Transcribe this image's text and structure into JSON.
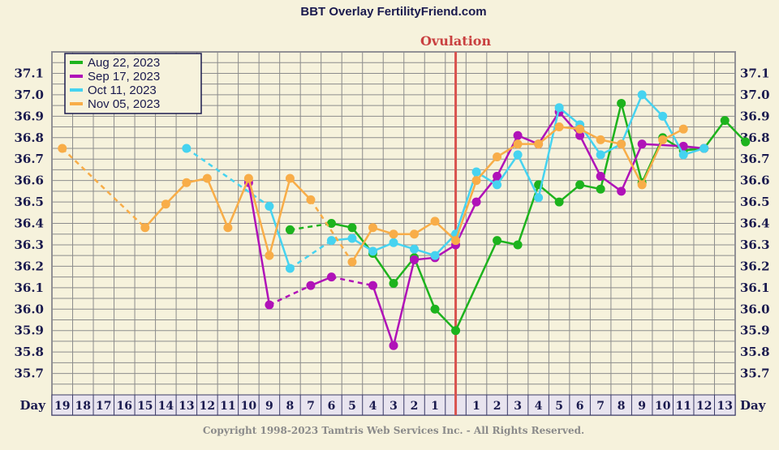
{
  "chart_data": {
    "type": "line",
    "title": "BBT Overlay FertilityFriend.com",
    "annotation": "Ovulation",
    "copyright": "Copyright 1998-2023 Tamtris Web Services Inc. - All Rights Reserved.",
    "x_axis_label": "Day",
    "x_ticks": [
      "19",
      "18",
      "17",
      "16",
      "15",
      "14",
      "13",
      "12",
      "11",
      "10",
      "9",
      "8",
      "7",
      "6",
      "5",
      "4",
      "3",
      "2",
      "1",
      "",
      "1",
      "2",
      "3",
      "4",
      "5",
      "6",
      "7",
      "8",
      "9",
      "10",
      "11",
      "12",
      "13"
    ],
    "ylim": [
      35.6,
      37.2
    ],
    "y_ticks": [
      35.7,
      35.8,
      35.9,
      36.0,
      36.1,
      36.2,
      36.3,
      36.4,
      36.5,
      36.6,
      36.7,
      36.8,
      36.9,
      37.0,
      37.1
    ],
    "y_tick_labels": [
      "35.7",
      "35.8",
      "35.9",
      "36.0",
      "36.1",
      "36.2",
      "36.3",
      "36.4",
      "36.5",
      "36.6",
      "36.7",
      "36.8",
      "36.9",
      "37.0",
      "37.1"
    ],
    "grid": true,
    "legend_position": "top-left",
    "ovulation_marker_index": 19.5,
    "colors": {
      "background": "#f6f2dc",
      "grid": "#8c8c8c",
      "ovulation_line": "#d9534f",
      "text": "#1a1a4e"
    },
    "series": [
      {
        "name": "Aug 22, 2023",
        "color": "#1db31d",
        "points": [
          [
            11,
            36.37
          ],
          [
            13,
            36.4
          ],
          [
            14,
            36.38
          ],
          [
            15,
            36.26
          ],
          [
            16,
            36.12
          ],
          [
            17,
            36.24
          ],
          [
            18,
            36.0
          ],
          [
            19,
            35.9
          ],
          [
            21,
            36.32
          ],
          [
            22,
            36.3
          ],
          [
            23,
            36.58
          ],
          [
            24,
            36.5
          ],
          [
            25,
            36.58
          ],
          [
            26,
            36.56
          ],
          [
            27,
            36.96
          ],
          [
            28,
            36.59
          ],
          [
            29,
            36.8
          ],
          [
            30,
            36.74
          ],
          [
            31,
            36.75
          ],
          [
            32,
            36.88
          ],
          [
            33,
            36.78
          ]
        ],
        "dashed_segments": [
          [
            11,
            13
          ]
        ]
      },
      {
        "name": "Sep 17, 2023",
        "color": "#b012b8",
        "points": [
          [
            9,
            36.59
          ],
          [
            10,
            36.02
          ],
          [
            12,
            36.11
          ],
          [
            13,
            36.15
          ],
          [
            15,
            36.11
          ],
          [
            16,
            35.83
          ],
          [
            17,
            36.23
          ],
          [
            18,
            36.24
          ],
          [
            19,
            36.3
          ],
          [
            20,
            36.5
          ],
          [
            21,
            36.62
          ],
          [
            22,
            36.81
          ],
          [
            23,
            36.77
          ],
          [
            24,
            36.92
          ],
          [
            25,
            36.81
          ],
          [
            26,
            36.62
          ],
          [
            27,
            36.55
          ],
          [
            28,
            36.77
          ],
          [
            30,
            36.76
          ],
          [
            31,
            36.75
          ]
        ],
        "dashed_segments": [
          [
            10,
            12
          ],
          [
            13,
            15
          ]
        ]
      },
      {
        "name": "Oct 11, 2023",
        "color": "#46d3f0",
        "points": [
          [
            6,
            36.75
          ],
          [
            10,
            36.48
          ],
          [
            11,
            36.19
          ],
          [
            13,
            36.32
          ],
          [
            14,
            36.33
          ],
          [
            15,
            36.27
          ],
          [
            16,
            36.31
          ],
          [
            17,
            36.28
          ],
          [
            18,
            36.25
          ],
          [
            19,
            36.35
          ],
          [
            20,
            36.64
          ],
          [
            21,
            36.58
          ],
          [
            22,
            36.72
          ],
          [
            23,
            36.52
          ],
          [
            24,
            36.94
          ],
          [
            25,
            36.86
          ],
          [
            26,
            36.72
          ],
          [
            27,
            36.77
          ],
          [
            28,
            37.0
          ],
          [
            29,
            36.9
          ],
          [
            30,
            36.72
          ],
          [
            31,
            36.75
          ]
        ],
        "dashed_segments": [
          [
            6,
            10
          ],
          [
            11,
            13
          ]
        ]
      },
      {
        "name": "Nov 05, 2023",
        "color": "#f8ad48",
        "points": [
          [
            0,
            36.75
          ],
          [
            4,
            36.38
          ],
          [
            5,
            36.49
          ],
          [
            6,
            36.59
          ],
          [
            7,
            36.61
          ],
          [
            8,
            36.38
          ],
          [
            9,
            36.61
          ],
          [
            10,
            36.25
          ],
          [
            11,
            36.61
          ],
          [
            12,
            36.51
          ],
          [
            14,
            36.22
          ],
          [
            15,
            36.38
          ],
          [
            16,
            36.35
          ],
          [
            17,
            36.35
          ],
          [
            18,
            36.41
          ],
          [
            19,
            36.32
          ],
          [
            20,
            36.6
          ],
          [
            21,
            36.71
          ],
          [
            22,
            36.77
          ],
          [
            23,
            36.77
          ],
          [
            24,
            36.85
          ],
          [
            25,
            36.84
          ],
          [
            26,
            36.79
          ],
          [
            27,
            36.77
          ],
          [
            28,
            36.58
          ],
          [
            29,
            36.79
          ],
          [
            30,
            36.84
          ]
        ],
        "dashed_segments": [
          [
            0,
            4
          ],
          [
            12,
            14
          ]
        ]
      }
    ]
  }
}
